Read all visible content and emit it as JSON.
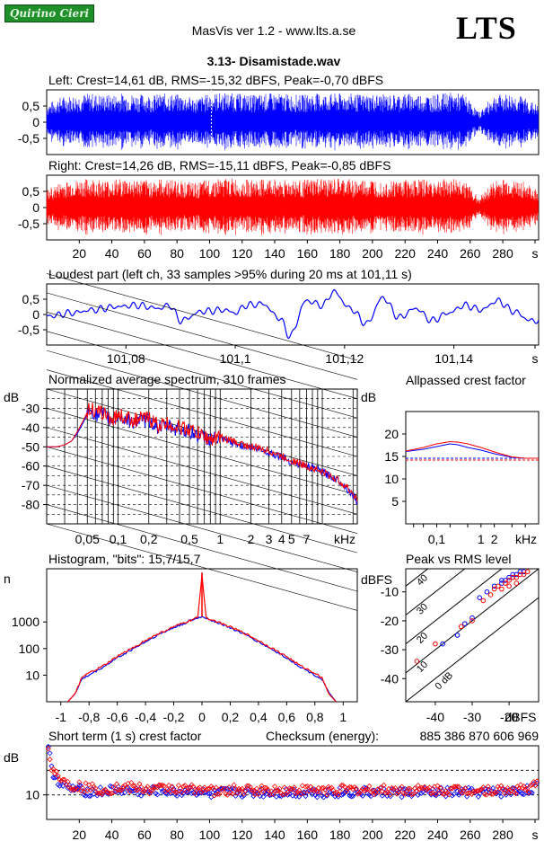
{
  "header": {
    "logo_text": "Quirino Cieri",
    "app_title": "MasVis ver 1.2 - www.lts.a.se",
    "brand": "LTS",
    "file_title": "3.13- Disamistade.wav"
  },
  "colors": {
    "left": "#0000ff",
    "right": "#ff0000",
    "grid": "#000000"
  },
  "chart_data": [
    {
      "id": "left-waveform",
      "type": "line",
      "title": "Left: Crest=14,61 dB, RMS=-15,32 dBFS, Peak=-0,70 dBFS",
      "yticks": [
        "0,5",
        "0",
        "-0,5"
      ],
      "ylim": [
        -1,
        1
      ],
      "xlim": [
        0,
        302
      ],
      "envelope_positive": [
        0.55,
        0.8,
        0.85,
        0.9,
        0.85,
        0.9,
        0.88,
        0.85,
        0.9,
        0.85,
        0.75,
        0.9,
        0.92,
        0.88,
        0.85,
        0.9,
        0.88,
        0.85,
        0.9,
        0.88,
        0.9,
        0.86,
        0.88,
        0.85,
        0.9,
        0.88,
        0.85,
        0.92,
        0.88,
        0.3,
        0.85,
        0.88,
        0.8,
        0.5
      ],
      "marker_time_s": 101.11
    },
    {
      "id": "right-waveform",
      "type": "line",
      "title": "Right: Crest=14,26 dB, RMS=-15,11 dBFS, Peak=-0,85 dBFS",
      "yticks": [
        "0,5",
        "0",
        "-0,5"
      ],
      "ylim": [
        -1,
        1
      ],
      "xlim": [
        0,
        302
      ],
      "xticks": [
        "20",
        "40",
        "60",
        "80",
        "100",
        "120",
        "140",
        "160",
        "180",
        "200",
        "220",
        "240",
        "260",
        "280",
        "s"
      ],
      "envelope_positive": [
        0.55,
        0.8,
        0.85,
        0.9,
        0.85,
        0.9,
        0.88,
        0.85,
        0.9,
        0.85,
        0.75,
        0.9,
        0.92,
        0.88,
        0.85,
        0.9,
        0.88,
        0.85,
        0.9,
        0.88,
        0.9,
        0.86,
        0.88,
        0.85,
        0.9,
        0.88,
        0.85,
        0.92,
        0.88,
        0.3,
        0.85,
        0.88,
        0.8,
        0.5
      ]
    },
    {
      "id": "loudest-part",
      "type": "line",
      "title": "Loudest part (left  ch, 33 samples >95% during 20 ms at 101,11 s)",
      "yticks": [
        "0,5",
        "0",
        "-0,5"
      ],
      "ylim": [
        -1,
        1
      ],
      "xlim": [
        101.0655,
        101.1555
      ],
      "xticks": [
        "101,08",
        "101,1",
        "101,12",
        "101,14",
        "s"
      ],
      "x": [
        101.066,
        101.07,
        101.074,
        101.078,
        101.082,
        101.086,
        101.088,
        101.09,
        101.094,
        101.098,
        101.1,
        101.102,
        101.105,
        101.108,
        101.11,
        101.113,
        101.116,
        101.118,
        101.121,
        101.124,
        101.127,
        101.13,
        101.133,
        101.136,
        101.139,
        101.142,
        101.145,
        101.148,
        101.151,
        101.154
      ],
      "y": [
        -0.05,
        0.05,
        0.15,
        0.25,
        0.3,
        0.2,
        0.3,
        -0.2,
        0.1,
        0.15,
        0.05,
        0.3,
        0.35,
        -0.1,
        -0.7,
        0.45,
        0.3,
        0.75,
        0.2,
        -0.3,
        0.55,
        -0.1,
        0.2,
        -0.2,
        0.05,
        0.3,
        0.15,
        0.45,
        0.1,
        -0.2
      ]
    },
    {
      "id": "spectrum",
      "type": "line",
      "title": "Normalized average spectrum, 310 frames",
      "ylabel": "dB",
      "yticks": [
        "-30",
        "-40",
        "-50",
        "-60",
        "-70",
        "-80"
      ],
      "ylim": [
        -90,
        -20
      ],
      "xlim": [
        0.02,
        22
      ],
      "xticks": [
        "0,05",
        "0,1",
        "0,2",
        "0,5",
        "1",
        "2",
        "3",
        "4",
        "5",
        "7",
        "kHz"
      ],
      "x_khz": [
        0.02,
        0.025,
        0.03,
        0.035,
        0.04,
        0.045,
        0.05,
        0.055,
        0.06,
        0.07,
        0.08,
        0.09,
        0.1,
        0.12,
        0.15,
        0.2,
        0.25,
        0.3,
        0.4,
        0.5,
        0.6,
        0.8,
        1,
        1.5,
        2,
        3,
        4,
        5,
        7,
        10,
        15,
        20,
        22
      ],
      "series": [
        {
          "color_key": "left",
          "values": [
            -50,
            -50,
            -49,
            -47,
            -43,
            -38,
            -33,
            -30,
            -34,
            -33,
            -35,
            -37,
            -34,
            -36,
            -37,
            -36,
            -40,
            -39,
            -41,
            -42,
            -44,
            -46,
            -46,
            -49,
            -50,
            -53,
            -55,
            -58,
            -60,
            -63,
            -68,
            -75,
            -79
          ]
        },
        {
          "color_key": "right",
          "values": [
            -50,
            -50,
            -49,
            -47,
            -42,
            -37,
            -32,
            -29,
            -33,
            -32,
            -34,
            -36,
            -33,
            -35,
            -36,
            -35,
            -39,
            -38,
            -40,
            -41,
            -43,
            -46,
            -45,
            -48,
            -50,
            -52,
            -55,
            -57,
            -60,
            -63,
            -68,
            -74,
            -78
          ]
        }
      ]
    },
    {
      "id": "allpassed-crest",
      "type": "line",
      "title": "Allpassed crest factor",
      "ylabel": "dB",
      "yticks": [
        "20",
        "15",
        "10",
        "5"
      ],
      "ylim": [
        0,
        25
      ],
      "xticks": [
        "0,1",
        "1",
        "2",
        "kHz"
      ],
      "xlim": [
        0.02,
        20
      ],
      "reference_db": 14.6,
      "x_khz": [
        0.02,
        0.05,
        0.1,
        0.2,
        0.3,
        0.5,
        1,
        2,
        5,
        10,
        20
      ],
      "series": [
        {
          "color_key": "left",
          "values": [
            16.1,
            16.6,
            17.2,
            17.8,
            17.6,
            17.0,
            16.4,
            15.6,
            14.8,
            14.6,
            14.6
          ]
        },
        {
          "color_key": "right",
          "values": [
            16.2,
            17.0,
            17.8,
            18.3,
            18.2,
            17.8,
            17.0,
            16.0,
            14.9,
            14.6,
            14.6
          ]
        }
      ]
    },
    {
      "id": "histogram",
      "type": "line",
      "title": "Histogram, \"bits\": 15,7/15,7",
      "ylabel": "n",
      "yticks": [
        "1000",
        "100",
        "10"
      ],
      "ylim_log": [
        1,
        100000
      ],
      "xlim": [
        -1.1,
        1.1
      ],
      "xticks": [
        "-1",
        "-0,8",
        "-0,6",
        "-0,4",
        "-0,2",
        "0",
        "0,2",
        "0,4",
        "0,6",
        "0,8",
        "1"
      ],
      "x": [
        -0.9,
        -0.85,
        -0.8,
        -0.7,
        -0.6,
        -0.5,
        -0.4,
        -0.3,
        -0.2,
        -0.1,
        -0.03,
        0,
        0.03,
        0.1,
        0.2,
        0.3,
        0.4,
        0.5,
        0.6,
        0.7,
        0.8,
        0.85,
        0.9
      ],
      "series": [
        {
          "color_key": "left",
          "values": [
            2,
            7,
            10,
            20,
            45,
            90,
            180,
            350,
            600,
            1000,
            1400,
            1600,
            1400,
            1000,
            600,
            350,
            180,
            90,
            45,
            20,
            10,
            7,
            2
          ]
        },
        {
          "color_key": "right",
          "values": [
            2,
            8,
            12,
            22,
            50,
            100,
            200,
            380,
            650,
            1050,
            1450,
            60000,
            1450,
            1050,
            650,
            380,
            200,
            100,
            50,
            22,
            12,
            8,
            2
          ]
        }
      ]
    },
    {
      "id": "peak-vs-rms",
      "type": "scatter",
      "title": "Peak vs RMS level",
      "ylabel": "dBFS",
      "xlabel": "dBFS",
      "yticks": [
        "-10",
        "-20",
        "-30",
        "-40"
      ],
      "xticks": [
        "-40",
        "-30",
        "-20"
      ],
      "xlim": [
        -48,
        -12
      ],
      "ylim": [
        -48,
        -2
      ],
      "crest_labels": [
        "40",
        "30",
        "20",
        "10",
        "0 dB"
      ],
      "series": [
        {
          "color_key": "left",
          "x": [
            -38,
            -34,
            -32,
            -30,
            -28,
            -26,
            -24,
            -22,
            -20,
            -19,
            -18,
            -17,
            -16,
            -22,
            -21,
            -19
          ],
          "y": [
            -28,
            -25,
            -21,
            -19,
            -12,
            -10,
            -8,
            -6,
            -5,
            -4,
            -4,
            -3,
            -3,
            -7,
            -6,
            -5
          ]
        },
        {
          "color_key": "right",
          "x": [
            -45,
            -40,
            -33,
            -30,
            -27,
            -25,
            -24,
            -23,
            -21,
            -20,
            -19,
            -18,
            -17,
            -16,
            -15,
            -22,
            -20,
            -18
          ],
          "y": [
            -34,
            -28,
            -22,
            -20,
            -13,
            -11,
            -9,
            -8,
            -7,
            -6,
            -5,
            -5,
            -4,
            -4,
            -3,
            -9,
            -8,
            -7
          ]
        }
      ]
    },
    {
      "id": "short-term-crest",
      "type": "scatter",
      "title": "Short term (1 s) crest factor",
      "checksum_label": "Checksum (energy):",
      "checksum_value": "885 386 870 606 969",
      "ylabel": "dB",
      "yticks": [
        "10"
      ],
      "ylim": [
        0,
        30
      ],
      "xlim": [
        0,
        302
      ],
      "xticks": [
        "20",
        "40",
        "60",
        "80",
        "100",
        "120",
        "140",
        "160",
        "180",
        "200",
        "220",
        "240",
        "260",
        "280",
        "s"
      ],
      "reference_lines_db": [
        10,
        20
      ],
      "series": [
        {
          "color_key": "left",
          "x": [
            1,
            2,
            3,
            5,
            8,
            12,
            20,
            30,
            40,
            50,
            60,
            70,
            80,
            90,
            100,
            110,
            120,
            140,
            160,
            180,
            200,
            220,
            240,
            260,
            280,
            295,
            300
          ],
          "y": [
            28,
            26,
            20,
            18,
            15,
            13,
            12,
            11,
            12,
            12,
            11,
            12,
            11,
            12,
            10,
            11,
            11,
            11,
            11,
            11,
            11,
            11,
            11,
            11,
            11,
            12,
            13
          ]
        },
        {
          "color_key": "right",
          "x": [
            1,
            2,
            4,
            6,
            10,
            15,
            25,
            35,
            45,
            55,
            65,
            75,
            85,
            95,
            105,
            115,
            125,
            145,
            165,
            185,
            205,
            225,
            245,
            265,
            285,
            297,
            301
          ],
          "y": [
            27,
            24,
            20,
            19,
            16,
            14,
            13,
            12,
            13,
            13,
            12,
            13,
            12,
            13,
            11,
            12,
            12,
            12,
            12,
            12,
            12,
            12,
            12,
            12,
            12,
            13,
            14
          ]
        }
      ]
    }
  ]
}
